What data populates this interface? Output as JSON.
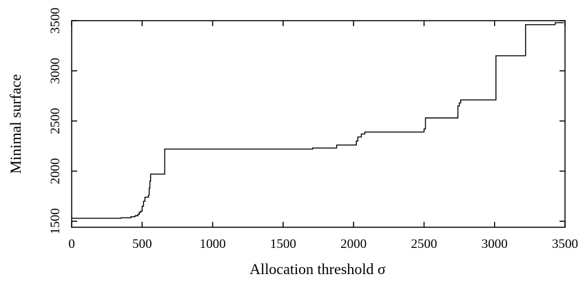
{
  "chart_data": {
    "type": "line",
    "title": "",
    "xlabel": "Allocation threshold σ",
    "ylabel": "Minimal surface",
    "xlim": [
      0,
      3500
    ],
    "ylim": [
      1440,
      3500
    ],
    "grid": false,
    "legend": "none",
    "x_ticks": [
      0,
      500,
      1000,
      1500,
      2000,
      2500,
      3000,
      3500
    ],
    "y_ticks": [
      1500,
      2000,
      2500,
      3000,
      3500
    ],
    "series": [
      {
        "step": "post",
        "points": [
          [
            0,
            1530
          ],
          [
            350,
            1535
          ],
          [
            420,
            1545
          ],
          [
            450,
            1555
          ],
          [
            470,
            1570
          ],
          [
            480,
            1590
          ],
          [
            490,
            1600
          ],
          [
            500,
            1650
          ],
          [
            510,
            1700
          ],
          [
            520,
            1740
          ],
          [
            545,
            1760
          ],
          [
            550,
            1830
          ],
          [
            555,
            1900
          ],
          [
            560,
            1970
          ],
          [
            660,
            2220
          ],
          [
            1710,
            2230
          ],
          [
            1880,
            2260
          ],
          [
            2020,
            2300
          ],
          [
            2030,
            2340
          ],
          [
            2055,
            2370
          ],
          [
            2080,
            2390
          ],
          [
            2500,
            2420
          ],
          [
            2510,
            2530
          ],
          [
            2740,
            2650
          ],
          [
            2750,
            2680
          ],
          [
            2760,
            2710
          ],
          [
            3010,
            3150
          ],
          [
            3220,
            3460
          ],
          [
            3430,
            3480
          ]
        ],
        "color": "#000000"
      }
    ]
  }
}
